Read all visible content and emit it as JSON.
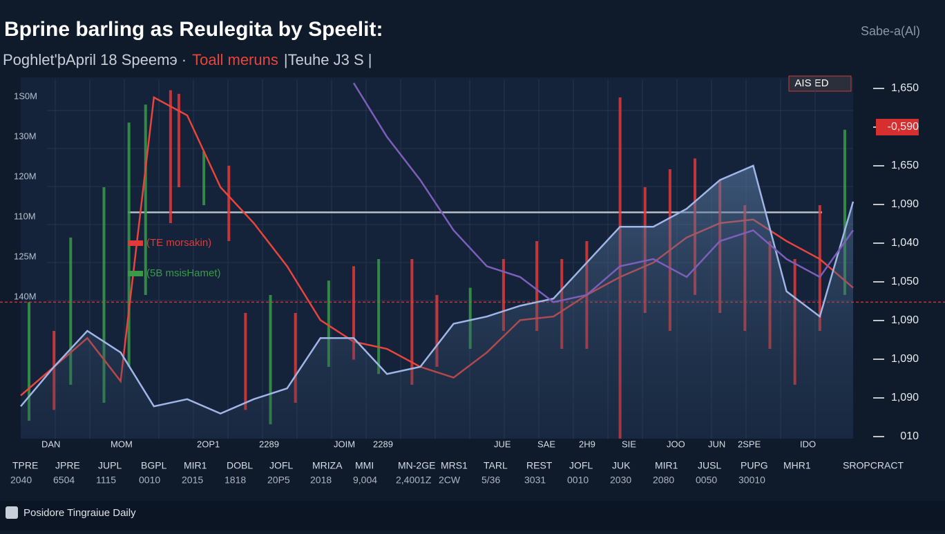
{
  "chart_data": {
    "type": "line",
    "title": "Bprine barling as Reulegita by Speelit:",
    "subtitle": "Poghlet'þApril 18 Speemэ ·",
    "subtitle_highlight": "Toall meruns",
    "subtitle_tail": "|Teuhe J3 S |",
    "corner_label": "Sabe-a(Al)",
    "badge": "AIS ED",
    "footer": "Posidore Tingraiue Daily",
    "legend": [
      {
        "label": "(TE morsakin)",
        "color": "#e03a3a"
      },
      {
        "label": "(5B msisHamet)",
        "color": "#3a9a4a"
      }
    ],
    "left_labels": [
      "1S0M",
      "130M",
      "120M",
      "110M",
      "125M",
      "140M"
    ],
    "right_labels": [
      "1,650",
      "-0,590",
      "1,650",
      "1,090",
      "1,040",
      "1,050",
      "1,090",
      "1,090",
      "1,090",
      "010"
    ],
    "right_highlight_index": 1,
    "inner_x_labels": [
      "DAN",
      "MOM",
      "2OP1",
      "2289",
      "JOIM",
      "2289",
      "JUE",
      "SAE",
      "2H9",
      "SIE",
      "JOO",
      "JUN",
      "2SPE",
      "IDO"
    ],
    "x_labels": [
      "TPRE",
      "JPRE",
      "JUPL",
      "BGPL",
      "MIR1",
      "DOBL",
      "JOFL",
      "MRIZA",
      "MMI",
      "MN-2GE",
      "MRS1",
      "TARL",
      "REST",
      "JOFL",
      "JUK",
      "MIR1",
      "JUSL",
      "PUPG",
      "MHR1"
    ],
    "x_sublabels": [
      "2040",
      "6504",
      "1115",
      "0010",
      "2015",
      "1818",
      "20P5",
      "2018",
      "9,004",
      "2,4001Z",
      "2CW",
      "5/36",
      "3031",
      "0010",
      "2030",
      "2080",
      "0050",
      "30010"
    ],
    "x_right_label": "SROPCRACT",
    "xlim": [
      0,
      100
    ],
    "ylim": [
      0,
      100
    ],
    "x": [
      0,
      4,
      8,
      12,
      16,
      20,
      24,
      28,
      32,
      36,
      40,
      44,
      48,
      52,
      56,
      60,
      64,
      68,
      72,
      76,
      80,
      84,
      88,
      92,
      96,
      100
    ],
    "series": [
      {
        "name": "red",
        "color": "#e8453c",
        "values": [
          12,
          20,
          28,
          16,
          95,
          90,
          70,
          60,
          48,
          33,
          27,
          25,
          20,
          17,
          24,
          33,
          34,
          40,
          45,
          49,
          56,
          60,
          61,
          55,
          50,
          42
        ]
      },
      {
        "name": "blue",
        "color": "#9fb6e6",
        "values": [
          9,
          20,
          30,
          24,
          9,
          11,
          7,
          11,
          14,
          28,
          28,
          18,
          20,
          32,
          34,
          37,
          39,
          49,
          59,
          59,
          64,
          72,
          76,
          41,
          34,
          66
        ]
      },
      {
        "name": "purple",
        "color": "#7b5fb8",
        "values": [
          null,
          null,
          null,
          null,
          null,
          null,
          null,
          null,
          null,
          null,
          99,
          84,
          72,
          58,
          48,
          45,
          38,
          40,
          48,
          50,
          45,
          55,
          58,
          50,
          45,
          58
        ]
      }
    ],
    "candles": [
      {
        "x": 1,
        "low": 5,
        "high": 38,
        "color": "#3a9a4a"
      },
      {
        "x": 4,
        "low": 8,
        "high": 30,
        "color": "#e03a3a"
      },
      {
        "x": 6,
        "low": 15,
        "high": 56,
        "color": "#3a9a4a"
      },
      {
        "x": 10,
        "low": 10,
        "high": 70,
        "color": "#3a9a4a"
      },
      {
        "x": 13,
        "low": 20,
        "high": 88,
        "color": "#3a9a4a"
      },
      {
        "x": 15,
        "low": 40,
        "high": 93,
        "color": "#3a9a4a"
      },
      {
        "x": 18,
        "low": 60,
        "high": 97,
        "color": "#e03a3a"
      },
      {
        "x": 19,
        "low": 70,
        "high": 96,
        "color": "#e03a3a"
      },
      {
        "x": 22,
        "low": 65,
        "high": 80,
        "color": "#3a9a4a"
      },
      {
        "x": 25,
        "low": 55,
        "high": 76,
        "color": "#e03a3a"
      },
      {
        "x": 27,
        "low": 8,
        "high": 35,
        "color": "#e03a3a"
      },
      {
        "x": 30,
        "low": 4,
        "high": 40,
        "color": "#3a9a4a"
      },
      {
        "x": 33,
        "low": 10,
        "high": 35,
        "color": "#e03a3a"
      },
      {
        "x": 37,
        "low": 20,
        "high": 44,
        "color": "#3a9a4a"
      },
      {
        "x": 40,
        "low": 22,
        "high": 48,
        "color": "#e03a3a"
      },
      {
        "x": 43,
        "low": 18,
        "high": 50,
        "color": "#3a9a4a"
      },
      {
        "x": 47,
        "low": 15,
        "high": 50,
        "color": "#e03a3a"
      },
      {
        "x": 50,
        "low": 20,
        "high": 40,
        "color": "#e03a3a"
      },
      {
        "x": 54,
        "low": 25,
        "high": 42,
        "color": "#3a9a4a"
      },
      {
        "x": 58,
        "low": 30,
        "high": 50,
        "color": "#e03a3a"
      },
      {
        "x": 62,
        "low": 30,
        "high": 55,
        "color": "#e03a3a"
      },
      {
        "x": 65,
        "low": 25,
        "high": 50,
        "color": "#e03a3a"
      },
      {
        "x": 68,
        "low": 25,
        "high": 55,
        "color": "#e03a3a"
      },
      {
        "x": 72,
        "low": 0,
        "high": 95,
        "color": "#e03a3a"
      },
      {
        "x": 75,
        "low": 35,
        "high": 70,
        "color": "#e03a3a"
      },
      {
        "x": 78,
        "low": 30,
        "high": 75,
        "color": "#e03a3a"
      },
      {
        "x": 81,
        "low": 40,
        "high": 78,
        "color": "#e03a3a"
      },
      {
        "x": 84,
        "low": 35,
        "high": 72,
        "color": "#e03a3a"
      },
      {
        "x": 87,
        "low": 30,
        "high": 65,
        "color": "#e03a3a"
      },
      {
        "x": 90,
        "low": 25,
        "high": 55,
        "color": "#e03a3a"
      },
      {
        "x": 93,
        "low": 15,
        "high": 50,
        "color": "#e03a3a"
      },
      {
        "x": 96,
        "low": 30,
        "high": 65,
        "color": "#e03a3a"
      },
      {
        "x": 99,
        "low": 40,
        "high": 86,
        "color": "#3a9a4a"
      }
    ],
    "reference_lines": [
      {
        "value": 63,
        "color": "#b9c0c8",
        "dashed": false
      },
      {
        "value": 38,
        "color": "#d03030",
        "dashed": true
      }
    ]
  }
}
